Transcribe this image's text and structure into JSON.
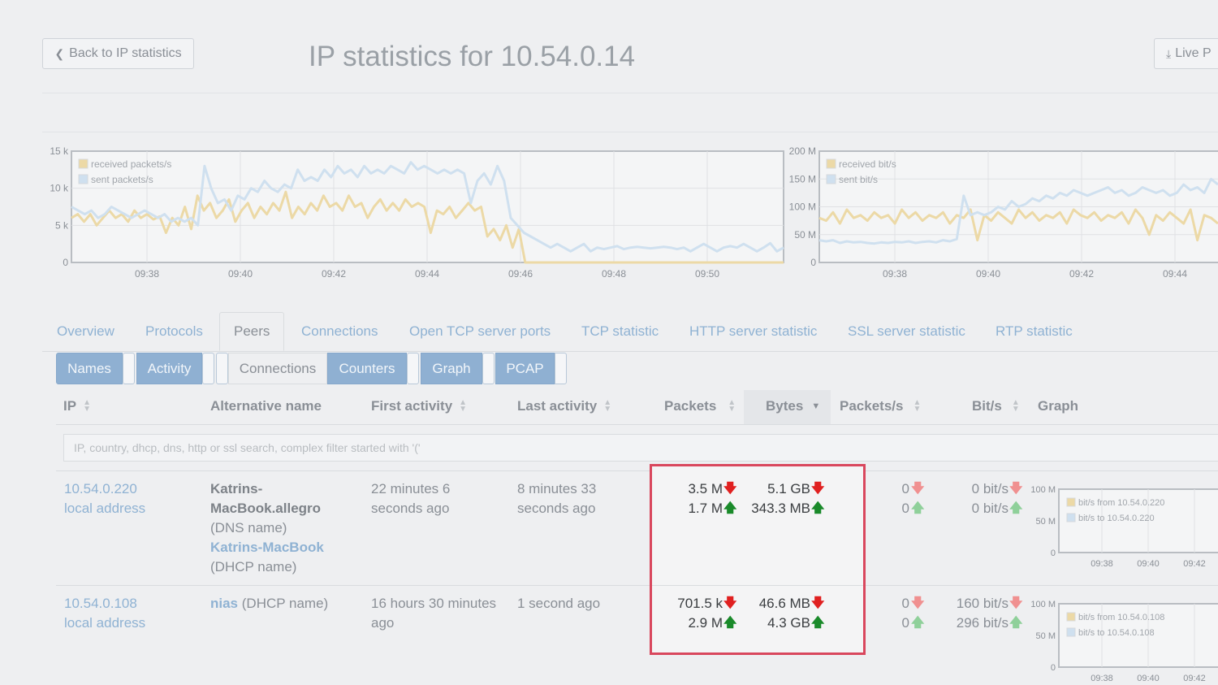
{
  "header": {
    "back_label": "Back to IP statistics",
    "title": "IP statistics for 10.54.0.14",
    "live_label": "Live P"
  },
  "chart_data": [
    {
      "type": "line",
      "legend": [
        "received packets/s",
        "sent packets/s"
      ],
      "yticks": [
        "15 k",
        "10 k",
        "5 k",
        "0"
      ],
      "xticks": [
        "09:38",
        "09:40",
        "09:42",
        "09:44",
        "09:46",
        "09:48",
        "09:50"
      ],
      "ylim": [
        0,
        15000
      ],
      "grid": true,
      "legend_position": "top-left",
      "series": [
        {
          "name": "received packets/s",
          "color": "#ecd9a6",
          "values": [
            6000,
            6500,
            5500,
            6500,
            5000,
            6000,
            7000,
            6000,
            6500,
            5500,
            7000,
            6000,
            6500,
            5800,
            6200,
            4000,
            6000,
            5000,
            7500,
            4500,
            9000,
            7000,
            8000,
            6000,
            7000,
            8500,
            5500,
            7000,
            8000,
            6000,
            7500,
            6500,
            8000,
            7000,
            9500,
            6000,
            7500,
            6500,
            8000,
            7000,
            9000,
            7500,
            8000,
            7000,
            9000,
            7500,
            8000,
            6000,
            7500,
            8500,
            7000,
            8000,
            7000,
            8500,
            7500,
            8000,
            7500,
            4000,
            7000,
            6500,
            7500,
            6000,
            7000,
            8000,
            7000,
            7500,
            3500,
            4500,
            3000,
            5000,
            2000,
            4500,
            0,
            0,
            0,
            0,
            0,
            0,
            0,
            0,
            0,
            0,
            0,
            0,
            0,
            0,
            0,
            0,
            0,
            0,
            0,
            0,
            0,
            0,
            0,
            0,
            0,
            0,
            0,
            0,
            0,
            0,
            0,
            0,
            0,
            0,
            0,
            0,
            0,
            0,
            0,
            0,
            0,
            0
          ]
        },
        {
          "name": "sent packets/s",
          "color": "#cfe0ef",
          "values": [
            7500,
            7000,
            6500,
            7000,
            6000,
            6500,
            7500,
            7000,
            6500,
            6000,
            6500,
            7000,
            6500,
            6000,
            6500,
            5500,
            6000,
            5500,
            6000,
            5000,
            13000,
            10000,
            8000,
            8500,
            7000,
            9000,
            8500,
            10000,
            9500,
            11000,
            10000,
            9500,
            10500,
            10000,
            12500,
            11000,
            11500,
            11000,
            12500,
            11500,
            13000,
            12000,
            12500,
            11500,
            13000,
            12000,
            12500,
            12000,
            13000,
            12500,
            12000,
            13500,
            12500,
            13000,
            12500,
            12000,
            12500,
            12000,
            12500,
            12000,
            8000,
            11000,
            12000,
            10500,
            13000,
            11000,
            6000,
            5000,
            4000,
            3500,
            3000,
            2500,
            2000,
            2500,
            2000,
            1500,
            2000,
            2500,
            1500,
            2000,
            1800,
            2000,
            2200,
            1800,
            2000,
            2100,
            2000,
            1900,
            2000,
            2100,
            2000,
            1800,
            2000,
            1500,
            2000,
            2500,
            2000,
            1500,
            2000,
            2200,
            2000,
            2500,
            2000,
            1500,
            2000,
            2600,
            1500,
            2000
          ]
        }
      ]
    },
    {
      "type": "line",
      "legend": [
        "received bit/s",
        "sent bit/s"
      ],
      "yticks": [
        "200 M",
        "150 M",
        "100 M",
        "50 M",
        "0"
      ],
      "xticks": [
        "09:38",
        "09:40",
        "09:42",
        "09:44"
      ],
      "ylim": [
        0,
        200000000
      ],
      "grid": true,
      "legend_position": "top-left",
      "series": [
        {
          "name": "received bit/s",
          "color": "#ecd9a6",
          "values": [
            80,
            75,
            90,
            70,
            95,
            80,
            85,
            75,
            90,
            80,
            85,
            70,
            95,
            80,
            90,
            75,
            85,
            80,
            90,
            70,
            85,
            80,
            95,
            40,
            85,
            75,
            90,
            80,
            70,
            95,
            80,
            90,
            75,
            85,
            80,
            90,
            70,
            95,
            85,
            80,
            90,
            75,
            85,
            80,
            90,
            70,
            95,
            80,
            50,
            85,
            75,
            90,
            80,
            70,
            95,
            40,
            85,
            80,
            70
          ]
        },
        {
          "name": "sent bit/s",
          "color": "#cfe0ef",
          "values": [
            40,
            38,
            40,
            35,
            38,
            36,
            37,
            35,
            34,
            36,
            35,
            37,
            36,
            38,
            35,
            37,
            38,
            36,
            40,
            38,
            42,
            120,
            85,
            90,
            85,
            90,
            100,
            95,
            110,
            100,
            105,
            115,
            110,
            120,
            115,
            125,
            120,
            130,
            125,
            120,
            125,
            130,
            135,
            125,
            130,
            120,
            125,
            135,
            130,
            125,
            130,
            120,
            125,
            140,
            130,
            135,
            125,
            150,
            140
          ]
        }
      ]
    }
  ],
  "tabs": [
    "Overview",
    "Protocols",
    "Peers",
    "Connections",
    "Open TCP server ports",
    "TCP statistic",
    "HTTP server statistic",
    "SSL server statistic",
    "RTP statistic"
  ],
  "column_buttons": [
    "Names",
    "Activity",
    "Connections",
    "Counters",
    "Graph",
    "PCAP"
  ],
  "table": {
    "headers": [
      "IP",
      "Alternative name",
      "First activity",
      "Last activity",
      "Packets",
      "Bytes",
      "Packets/s",
      "Bit/s",
      "Graph"
    ],
    "filter_placeholder": "IP, country, dhcp, dns, http or ssl search, complex filter started with '('",
    "rows": [
      {
        "ip": "10.54.0.220",
        "ip_note": "local address",
        "alt_name_1": "Katrins-",
        "alt_name_2": "MacBook.allegro",
        "alt_src_1": "(DNS name)",
        "alt_name_3": "Katrins-MacBook",
        "alt_src_2": "(DHCP name)",
        "first_1": "22 minutes 6",
        "first_2": "seconds ago",
        "last_1": "8 minutes 33",
        "last_2": "seconds ago",
        "packets_in": "3.5 M",
        "packets_out": "1.7 M",
        "bytes_in": "5.1 GB",
        "bytes_out": "343.3 MB",
        "pps_in": "0",
        "pps_out": "0",
        "bps_in": "0 bit/s",
        "bps_out": "0 bit/s",
        "graph": {
          "ymax": "100 M",
          "ymid": "50 M",
          "ymin": "0",
          "legend_from": "bit/s from 10.54.0.220",
          "legend_to": "bit/s to 10.54.0.220",
          "xticks": [
            "09:38",
            "09:40",
            "09:42"
          ]
        }
      },
      {
        "ip": "10.54.0.108",
        "ip_note": "local address",
        "alt_name_1": "nias",
        "alt_src_1": "(DHCP name)",
        "first_1": "16 hours 30 minutes",
        "first_2": "ago",
        "last_1": "1 second ago",
        "packets_in": "701.5 k",
        "packets_out": "2.9 M",
        "bytes_in": "46.6 MB",
        "bytes_out": "4.3 GB",
        "pps_in": "0",
        "pps_out": "0",
        "bps_in": "160 bit/s",
        "bps_out": "296 bit/s",
        "graph": {
          "ymax": "100 M",
          "ymid": "50 M",
          "ymin": "0",
          "legend_from": "bit/s from 10.54.0.108",
          "legend_to": "bit/s to 10.54.0.108",
          "xticks": [
            "09:38",
            "09:40",
            "09:42"
          ]
        }
      }
    ]
  },
  "icons": {
    "back": "chevron-left-icon",
    "live": "download-icon",
    "sort": "sort-icon",
    "down": "arrow-down-icon",
    "up": "arrow-up-icon"
  },
  "colors": {
    "link": "#8fb2d3",
    "active_button": "#8fb0d2",
    "highlight_border": "#d9475d",
    "arrow_down": "#e02020",
    "arrow_up": "#1a8a2a"
  }
}
